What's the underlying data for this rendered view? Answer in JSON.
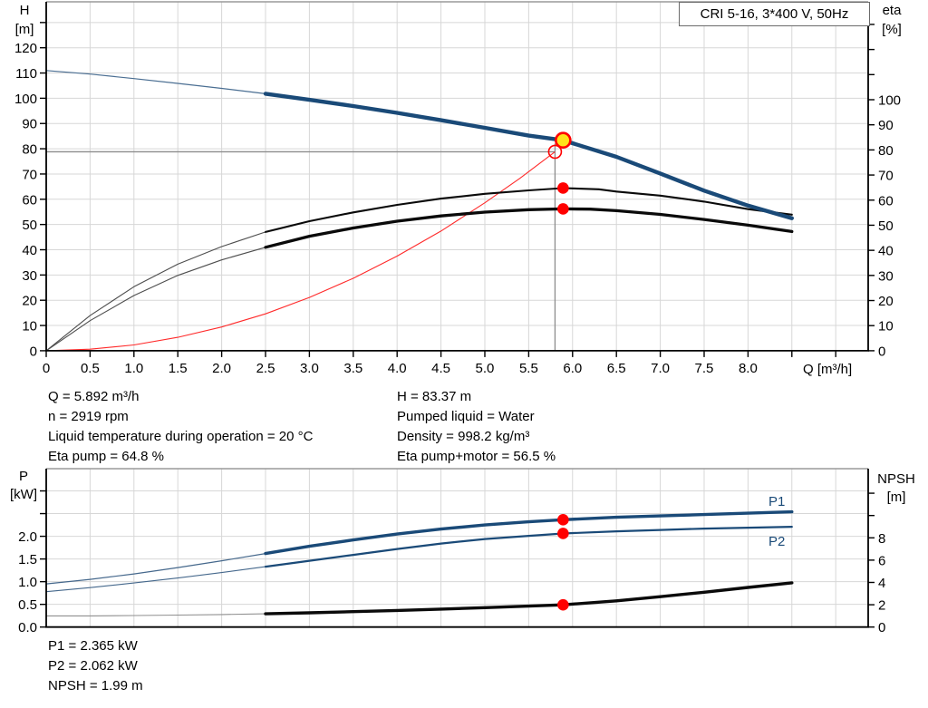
{
  "title_box": "CRI 5-16, 3*400 V, 50Hz",
  "colors": {
    "curve_blue": "#1a4a78",
    "curve_black": "#0a0a0a",
    "red": "#ff0000",
    "system_red": "#ff2a2a",
    "yellow": "#ffe11a",
    "grid": "#d7d7d7",
    "crosshair": "#8c8c8c",
    "border_gray": "#9a9a9a"
  },
  "top_info": {
    "left": [
      "Q = 5.892 m³/h",
      "n = 2919 rpm",
      "Liquid temperature during operation = 20 °C",
      "Eta pump = 64.8 %"
    ],
    "right": [
      "H = 83.37 m",
      "Pumped liquid = Water",
      "Density = 998.2 kg/m³",
      "Eta pump+motor = 56.5 %"
    ]
  },
  "bottom_info": [
    "P1 = 2.365 kW",
    "P2 = 2.062 kW",
    "NPSH = 1.99 m"
  ],
  "chart_data": [
    {
      "type": "line",
      "name": "pump-performance-curve",
      "x_label": "Q [m³/h]",
      "y_left_label": [
        "H",
        "[m]"
      ],
      "y_right_label": [
        "eta",
        "[%]"
      ],
      "xlim": [
        0,
        9.37
      ],
      "ylim_left": [
        0,
        138.2
      ],
      "ylim_right": [
        0,
        139
      ],
      "grid": true,
      "x_ticks": {
        "values": [
          0,
          0.5,
          1,
          1.5,
          2,
          2.5,
          3,
          3.5,
          4,
          4.5,
          5,
          5.5,
          6,
          6.5,
          7,
          7.5,
          8,
          8.5,
          9
        ],
        "labels": [
          "0",
          "0.5",
          "1.0",
          "1.5",
          "2.0",
          "2.5",
          "3.0",
          "3.5",
          "4.0",
          "4.5",
          "5.0",
          "5.5",
          "6.0",
          "6.5",
          "7.0",
          "7.5",
          "8.0",
          "",
          ""
        ]
      },
      "y_left_ticks": {
        "values": [
          0,
          10,
          20,
          30,
          40,
          50,
          60,
          70,
          80,
          90,
          100,
          110,
          120,
          130
        ],
        "labels": [
          "0",
          "10",
          "20",
          "30",
          "40",
          "50",
          "60",
          "70",
          "80",
          "90",
          "100",
          "110",
          "120",
          ""
        ]
      },
      "y_right_ticks": {
        "values": [
          0,
          10,
          20,
          30,
          40,
          50,
          60,
          70,
          80,
          90,
          100,
          110,
          120,
          130
        ],
        "labels": [
          "0",
          "10",
          "20",
          "30",
          "40",
          "50",
          "60",
          "70",
          "80",
          "90",
          "100",
          "",
          "",
          ""
        ]
      },
      "series": [
        {
          "name": "system-curve",
          "axis": "left",
          "color": "#ff2a2a",
          "width": 1.1,
          "points": [
            [
              0,
              0
            ],
            [
              0.5,
              0.6
            ],
            [
              1,
              2.3
            ],
            [
              1.5,
              5.3
            ],
            [
              2,
              9.4
            ],
            [
              2.5,
              14.6
            ],
            [
              3,
              21.1
            ],
            [
              3.5,
              28.7
            ],
            [
              4,
              37.5
            ],
            [
              4.5,
              47.4
            ],
            [
              5,
              58.6
            ],
            [
              5.4,
              68.3
            ],
            [
              5.8,
              78.8
            ]
          ]
        },
        {
          "name": "eta-pump-curve",
          "axis": "right",
          "color": "#0a0a0a",
          "width": 2.1,
          "thin_until": 2.5,
          "thin_width": 1.1,
          "thin_color": "#4d4d4d",
          "points": [
            [
              0,
              0
            ],
            [
              0.5,
              14
            ],
            [
              1,
              25.5
            ],
            [
              1.5,
              34.5
            ],
            [
              2,
              41.5
            ],
            [
              2.5,
              47.3
            ],
            [
              3,
              51.6
            ],
            [
              3.5,
              55.1
            ],
            [
              4,
              58.1
            ],
            [
              4.5,
              60.6
            ],
            [
              5,
              62.5
            ],
            [
              5.5,
              63.9
            ],
            [
              5.892,
              64.8
            ],
            [
              6.3,
              64.3
            ],
            [
              6.5,
              63.4
            ],
            [
              7,
              61.8
            ],
            [
              7.5,
              59.4
            ],
            [
              8,
              56.4
            ],
            [
              8.5,
              54.2
            ]
          ]
        },
        {
          "name": "eta-pump-motor-curve",
          "axis": "right",
          "color": "#0a0a0a",
          "width": 3.3,
          "thin_until": 2.5,
          "thin_width": 1.1,
          "thin_color": "#4d4d4d",
          "points": [
            [
              0,
              0
            ],
            [
              0.5,
              12
            ],
            [
              1,
              22
            ],
            [
              1.5,
              30
            ],
            [
              2,
              36.2
            ],
            [
              2.5,
              41.2
            ],
            [
              3,
              45.6
            ],
            [
              3.5,
              48.9
            ],
            [
              4,
              51.6
            ],
            [
              4.5,
              53.7
            ],
            [
              5,
              55.2
            ],
            [
              5.5,
              56.2
            ],
            [
              5.892,
              56.5
            ],
            [
              6.2,
              56.4
            ],
            [
              6.5,
              55.8
            ],
            [
              7,
              54.3
            ],
            [
              7.5,
              52.3
            ],
            [
              8,
              50
            ],
            [
              8.5,
              47.5
            ]
          ]
        },
        {
          "name": "head-curve",
          "axis": "left",
          "color": "#1a4a78",
          "width": 4.4,
          "thin_until": 2.5,
          "thin_width": 1.2,
          "thin_color": "#4a6e92",
          "points": [
            [
              0,
              111
            ],
            [
              0.5,
              109.6
            ],
            [
              1,
              107.8
            ],
            [
              1.5,
              105.9
            ],
            [
              2,
              103.9
            ],
            [
              2.5,
              101.8
            ],
            [
              3,
              99.4
            ],
            [
              3.5,
              96.9
            ],
            [
              4,
              94.2
            ],
            [
              4.5,
              91.3
            ],
            [
              5,
              88.3
            ],
            [
              5.5,
              85.2
            ],
            [
              5.892,
              83.37
            ],
            [
              6,
              82.2
            ],
            [
              6.5,
              76.8
            ],
            [
              7,
              70.2
            ],
            [
              7.5,
              63.4
            ],
            [
              8,
              57.5
            ],
            [
              8.5,
              52.5
            ]
          ]
        }
      ],
      "crosshair": {
        "q": 5.8,
        "h": 78.8
      },
      "markers": [
        {
          "kind": "rated-point-marker",
          "shape": "circle-open",
          "q": 5.8,
          "v": 78.8,
          "axis": "left",
          "r": 7,
          "stroke": "#ff0000"
        },
        {
          "kind": "duty-point-marker",
          "shape": "circle-filled",
          "q": 5.892,
          "v": 83.37,
          "axis": "left",
          "r": 8,
          "fill": "#ffe11a",
          "stroke": "#ff0000"
        },
        {
          "kind": "eta-pump-dot",
          "shape": "dot",
          "q": 5.892,
          "v": 64.8,
          "axis": "right",
          "r": 6.3,
          "fill": "#ff0000"
        },
        {
          "kind": "eta-pump-motor-dot",
          "shape": "dot",
          "q": 5.892,
          "v": 56.5,
          "axis": "right",
          "r": 6.3,
          "fill": "#ff0000"
        }
      ]
    },
    {
      "type": "line",
      "name": "power-npsh-curve",
      "x_label": "",
      "y_left_label": [
        "P",
        "[kW]"
      ],
      "y_right_label": [
        "NPSH",
        "[m]"
      ],
      "xlim": [
        0,
        9.37
      ],
      "ylim_left": [
        0,
        3.49
      ],
      "ylim_right": [
        0,
        14.2
      ],
      "grid": true,
      "x_ticks": {
        "values": [
          0,
          0.5,
          1,
          1.5,
          2,
          2.5,
          3,
          3.5,
          4,
          4.5,
          5,
          5.5,
          6,
          6.5,
          7,
          7.5,
          8,
          8.5,
          9
        ],
        "labels": [
          "",
          "",
          "",
          "",
          "",
          "",
          "",
          "",
          "",
          "",
          "",
          "",
          "",
          "",
          "",
          "",
          "",
          "",
          ""
        ]
      },
      "y_left_ticks": {
        "values": [
          0,
          0.5,
          1,
          1.5,
          2,
          2.5,
          3
        ],
        "labels": [
          "0.0",
          "0.5",
          "1.0",
          "1.5",
          "2.0",
          "",
          ""
        ]
      },
      "y_right_ticks": {
        "values": [
          0,
          2,
          4,
          6,
          8,
          10,
          12
        ],
        "labels": [
          "0",
          "2",
          "4",
          "6",
          "8",
          "",
          ""
        ]
      },
      "series": [
        {
          "name": "npsh-curve",
          "axis": "right",
          "color": "#0a0a0a",
          "width": 3.4,
          "thin_until": 2.5,
          "thin_width": 1.1,
          "thin_color": "#8f8f8f",
          "points": [
            [
              0,
              1.0
            ],
            [
              0.5,
              1.0
            ],
            [
              1,
              1.03
            ],
            [
              1.5,
              1.07
            ],
            [
              2,
              1.12
            ],
            [
              2.5,
              1.19
            ],
            [
              3,
              1.28
            ],
            [
              3.5,
              1.38
            ],
            [
              4,
              1.49
            ],
            [
              4.5,
              1.61
            ],
            [
              5,
              1.74
            ],
            [
              5.5,
              1.88
            ],
            [
              5.892,
              1.99
            ],
            [
              6.5,
              2.35
            ],
            [
              7,
              2.72
            ],
            [
              7.5,
              3.12
            ],
            [
              8,
              3.55
            ],
            [
              8.5,
              3.97
            ]
          ]
        },
        {
          "name": "p2-curve",
          "axis": "left",
          "color": "#1a4a78",
          "width": 2.2,
          "thin_until": 2.5,
          "thin_width": 1.1,
          "thin_color": "#45688c",
          "points": [
            [
              0,
              0.78
            ],
            [
              0.5,
              0.87
            ],
            [
              1,
              0.97
            ],
            [
              1.5,
              1.08
            ],
            [
              2,
              1.2
            ],
            [
              2.5,
              1.33
            ],
            [
              3,
              1.46
            ],
            [
              3.5,
              1.59
            ],
            [
              4,
              1.72
            ],
            [
              4.5,
              1.84
            ],
            [
              5,
              1.94
            ],
            [
              5.5,
              2.01
            ],
            [
              5.892,
              2.062
            ],
            [
              6.5,
              2.11
            ],
            [
              7,
              2.14
            ],
            [
              7.5,
              2.17
            ],
            [
              8,
              2.19
            ],
            [
              8.5,
              2.21
            ]
          ]
        },
        {
          "name": "p1-curve",
          "axis": "left",
          "color": "#1a4a78",
          "width": 3.4,
          "thin_until": 2.5,
          "thin_width": 1.2,
          "thin_color": "#45688c",
          "points": [
            [
              0,
              0.95
            ],
            [
              0.5,
              1.05
            ],
            [
              1,
              1.17
            ],
            [
              1.5,
              1.31
            ],
            [
              2,
              1.46
            ],
            [
              2.5,
              1.62
            ],
            [
              3,
              1.78
            ],
            [
              3.5,
              1.92
            ],
            [
              4,
              2.05
            ],
            [
              4.5,
              2.16
            ],
            [
              5,
              2.25
            ],
            [
              5.5,
              2.32
            ],
            [
              5.892,
              2.365
            ],
            [
              6.5,
              2.42
            ],
            [
              7,
              2.45
            ],
            [
              7.5,
              2.48
            ],
            [
              8,
              2.51
            ],
            [
              8.5,
              2.54
            ]
          ]
        }
      ],
      "series_labels": [
        "P1",
        "P2"
      ],
      "markers": [
        {
          "kind": "p1-dot",
          "shape": "dot",
          "q": 5.892,
          "v": 2.365,
          "axis": "left",
          "r": 6.3,
          "fill": "#ff0000"
        },
        {
          "kind": "p2-dot",
          "shape": "dot",
          "q": 5.892,
          "v": 2.062,
          "axis": "left",
          "r": 6.3,
          "fill": "#ff0000"
        },
        {
          "kind": "npsh-dot",
          "shape": "dot",
          "q": 5.892,
          "v": 1.99,
          "axis": "right",
          "r": 6.3,
          "fill": "#ff0000"
        }
      ]
    }
  ]
}
